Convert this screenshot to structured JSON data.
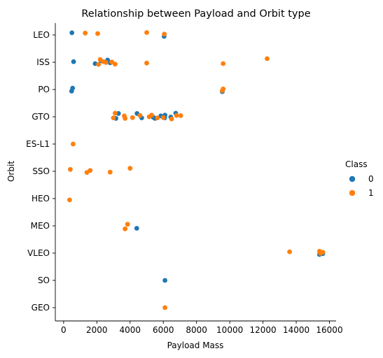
{
  "chart_data": {
    "type": "scatter",
    "title": "Relationship between Payload and Orbit type",
    "xlabel": "Payload Mass",
    "ylabel": "Orbit",
    "xlim": [
      -500,
      16400
    ],
    "x_ticks": [
      0,
      2000,
      4000,
      6000,
      8000,
      10000,
      12000,
      14000,
      16000
    ],
    "x_tick_labels": [
      "0",
      "2000",
      "4000",
      "6000",
      "8000",
      "10000",
      "12000",
      "14000",
      "16000"
    ],
    "categories": [
      "LEO",
      "ISS",
      "PO",
      "GTO",
      "ES-L1",
      "SSO",
      "HEO",
      "MEO",
      "VLEO",
      "SO",
      "GEO"
    ],
    "grid": false,
    "legend": {
      "title": "Class",
      "placement": "right",
      "entries": [
        "0",
        "1"
      ]
    },
    "colors": {
      "0": "#1f77b4",
      "1": "#ff7f0e"
    },
    "series": [
      {
        "name": "0",
        "points": [
          {
            "x": 500,
            "y": "LEO",
            "j": -0.08
          },
          {
            "x": 6050,
            "y": "LEO",
            "j": 0.05
          },
          {
            "x": 600,
            "y": "ISS",
            "j": -0.02
          },
          {
            "x": 1900,
            "y": "ISS",
            "j": 0.05
          },
          {
            "x": 2250,
            "y": "ISS",
            "j": -0.05
          },
          {
            "x": 2650,
            "y": "ISS",
            "j": -0.08
          },
          {
            "x": 2800,
            "y": "ISS",
            "j": 0.02
          },
          {
            "x": 480,
            "y": "PO",
            "j": 0.06
          },
          {
            "x": 540,
            "y": "PO",
            "j": -0.05
          },
          {
            "x": 9550,
            "y": "PO",
            "j": 0.08
          },
          {
            "x": 3300,
            "y": "GTO",
            "j": -0.12
          },
          {
            "x": 3150,
            "y": "GTO",
            "j": 0.06
          },
          {
            "x": 4420,
            "y": "GTO",
            "j": -0.12
          },
          {
            "x": 4700,
            "y": "GTO",
            "j": 0.04
          },
          {
            "x": 5400,
            "y": "GTO",
            "j": 0.02
          },
          {
            "x": 5500,
            "y": "GTO",
            "j": 0.06
          },
          {
            "x": 5850,
            "y": "GTO",
            "j": -0.03
          },
          {
            "x": 6100,
            "y": "GTO",
            "j": -0.06
          },
          {
            "x": 6080,
            "y": "GTO",
            "j": 0.04
          },
          {
            "x": 6450,
            "y": "GTO",
            "j": 0.01
          },
          {
            "x": 6750,
            "y": "GTO",
            "j": -0.13
          },
          {
            "x": 4400,
            "y": "MEO",
            "j": 0.09
          },
          {
            "x": 15400,
            "y": "VLEO",
            "j": 0.05
          },
          {
            "x": 15600,
            "y": "VLEO",
            "j": 0.02
          },
          {
            "x": 6100,
            "y": "SO",
            "j": 0.0
          }
        ]
      },
      {
        "name": "1",
        "points": [
          {
            "x": 1300,
            "y": "LEO",
            "j": -0.07
          },
          {
            "x": 2050,
            "y": "LEO",
            "j": -0.05
          },
          {
            "x": 5000,
            "y": "LEO",
            "j": -0.09
          },
          {
            "x": 6060,
            "y": "LEO",
            "j": -0.03
          },
          {
            "x": 2200,
            "y": "ISS",
            "j": -0.1
          },
          {
            "x": 2400,
            "y": "ISS",
            "j": -0.02
          },
          {
            "x": 2550,
            "y": "ISS",
            "j": 0.01
          },
          {
            "x": 2100,
            "y": "ISS",
            "j": 0.08
          },
          {
            "x": 2900,
            "y": "ISS",
            "j": -0.01
          },
          {
            "x": 3100,
            "y": "ISS",
            "j": 0.07
          },
          {
            "x": 5000,
            "y": "ISS",
            "j": 0.03
          },
          {
            "x": 9600,
            "y": "ISS",
            "j": 0.05
          },
          {
            "x": 12250,
            "y": "ISS",
            "j": -0.13
          },
          {
            "x": 9600,
            "y": "PO",
            "j": -0.02
          },
          {
            "x": 9550,
            "y": "PO",
            "j": 0.04
          },
          {
            "x": 3100,
            "y": "GTO",
            "j": -0.13
          },
          {
            "x": 3000,
            "y": "GTO",
            "j": 0.04
          },
          {
            "x": 3650,
            "y": "GTO",
            "j": -0.03
          },
          {
            "x": 3700,
            "y": "GTO",
            "j": 0.06
          },
          {
            "x": 4150,
            "y": "GTO",
            "j": 0.03
          },
          {
            "x": 4600,
            "y": "GTO",
            "j": -0.05
          },
          {
            "x": 5150,
            "y": "GTO",
            "j": 0.0
          },
          {
            "x": 5300,
            "y": "GTO",
            "j": -0.06
          },
          {
            "x": 5650,
            "y": "GTO",
            "j": 0.04
          },
          {
            "x": 6000,
            "y": "GTO",
            "j": 0.03
          },
          {
            "x": 6500,
            "y": "GTO",
            "j": 0.08
          },
          {
            "x": 6800,
            "y": "GTO",
            "j": -0.05
          },
          {
            "x": 7050,
            "y": "GTO",
            "j": -0.04
          },
          {
            "x": 570,
            "y": "ES-L1",
            "j": 0.0
          },
          {
            "x": 400,
            "y": "SSO",
            "j": -0.07
          },
          {
            "x": 1400,
            "y": "SSO",
            "j": 0.04
          },
          {
            "x": 1600,
            "y": "SSO",
            "j": -0.03
          },
          {
            "x": 2800,
            "y": "SSO",
            "j": 0.03
          },
          {
            "x": 4000,
            "y": "SSO",
            "j": -0.11
          },
          {
            "x": 360,
            "y": "HEO",
            "j": 0.05
          },
          {
            "x": 3700,
            "y": "MEO",
            "j": 0.11
          },
          {
            "x": 3850,
            "y": "MEO",
            "j": -0.06
          },
          {
            "x": 13600,
            "y": "VLEO",
            "j": -0.05
          },
          {
            "x": 15400,
            "y": "VLEO",
            "j": -0.07
          },
          {
            "x": 15600,
            "y": "VLEO",
            "j": -0.03
          },
          {
            "x": 15450,
            "y": "VLEO",
            "j": 0.01
          },
          {
            "x": 6100,
            "y": "GEO",
            "j": 0.0
          }
        ]
      }
    ]
  }
}
